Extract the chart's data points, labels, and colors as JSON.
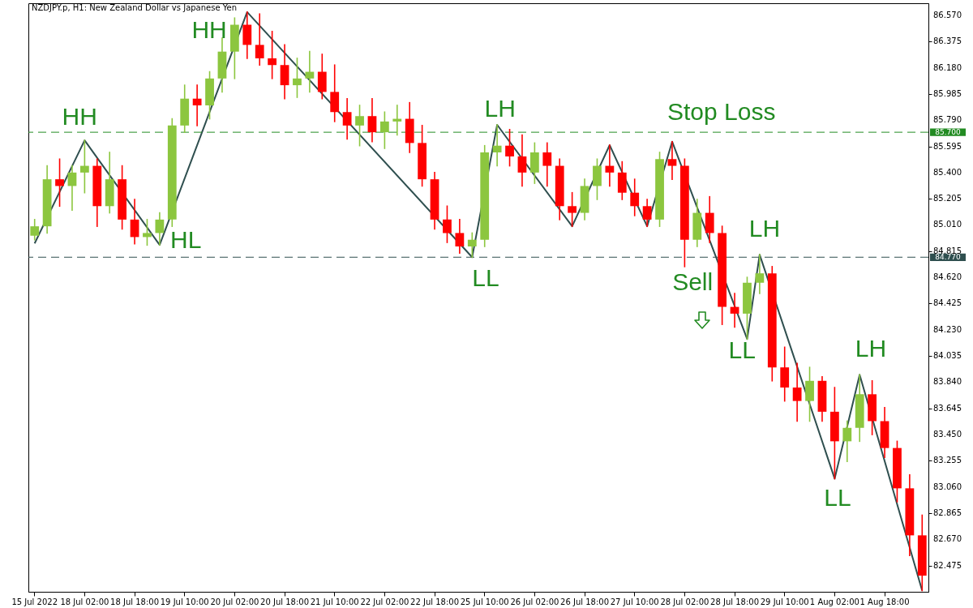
{
  "chart_data": {
    "type": "candlestick",
    "title": "NZDJPY.p, H1:  New Zealand Dollar vs Japanese Yen",
    "categories": [
      "15 Jul 2022",
      null,
      null,
      null,
      "18 Jul 02:00",
      null,
      null,
      null,
      "18 Jul 18:00",
      null,
      null,
      null,
      "19 Jul 10:00",
      null,
      null,
      null,
      "20 Jul 02:00",
      null,
      null,
      null,
      "20 Jul 18:00",
      null,
      null,
      null,
      "21 Jul 10:00",
      null,
      null,
      null,
      "22 Jul 02:00",
      null,
      null,
      null,
      "22 Jul 18:00",
      null,
      null,
      null,
      "25 Jul 10:00",
      null,
      null,
      null,
      "26 Jul 02:00",
      null,
      null,
      null,
      "26 Jul 18:00",
      null,
      null,
      null,
      "27 Jul 10:00",
      null,
      null,
      null,
      "28 Jul 02:00",
      null,
      null,
      null,
      "28 Jul 18:00",
      null,
      null,
      null,
      "29 Jul 10:00",
      null,
      null,
      null,
      "1 Aug 02:00",
      null,
      null,
      null,
      "1 Aug 18:00",
      null,
      null,
      null
    ],
    "ohlc": [
      [
        84.93,
        85.05,
        84.9,
        85.0
      ],
      [
        85.0,
        85.45,
        84.95,
        85.35
      ],
      [
        85.35,
        85.5,
        85.15,
        85.3
      ],
      [
        85.3,
        85.45,
        85.12,
        85.4
      ],
      [
        85.4,
        85.64,
        85.25,
        85.45
      ],
      [
        85.45,
        85.5,
        85.0,
        85.15
      ],
      [
        85.15,
        85.55,
        85.1,
        85.35
      ],
      [
        85.35,
        85.45,
        84.98,
        85.05
      ],
      [
        85.05,
        85.2,
        84.87,
        84.92
      ],
      [
        84.92,
        85.05,
        84.86,
        84.95
      ],
      [
        84.95,
        85.1,
        84.861,
        85.05
      ],
      [
        85.05,
        85.8,
        85.0,
        85.75
      ],
      [
        85.75,
        86.05,
        85.7,
        85.95
      ],
      [
        85.95,
        86.05,
        85.75,
        85.9
      ],
      [
        85.9,
        86.15,
        85.8,
        86.1
      ],
      [
        86.1,
        86.4,
        86.0,
        86.3
      ],
      [
        86.3,
        86.55,
        86.1,
        86.5
      ],
      [
        86.5,
        86.594,
        86.25,
        86.35
      ],
      [
        86.35,
        86.58,
        86.2,
        86.25
      ],
      [
        86.25,
        86.45,
        86.1,
        86.2
      ],
      [
        86.2,
        86.35,
        85.95,
        86.05
      ],
      [
        86.05,
        86.25,
        85.96,
        86.1
      ],
      [
        86.1,
        86.3,
        86.0,
        86.15
      ],
      [
        86.15,
        86.28,
        85.95,
        86.0
      ],
      [
        86.0,
        86.2,
        85.78,
        85.85
      ],
      [
        85.85,
        85.95,
        85.65,
        85.75
      ],
      [
        85.75,
        85.9,
        85.6,
        85.82
      ],
      [
        85.82,
        85.95,
        85.63,
        85.7
      ],
      [
        85.7,
        85.85,
        85.58,
        85.78
      ],
      [
        85.78,
        85.9,
        85.68,
        85.8
      ],
      [
        85.8,
        85.92,
        85.55,
        85.62
      ],
      [
        85.62,
        85.75,
        85.3,
        85.35
      ],
      [
        85.35,
        85.4,
        84.98,
        85.05
      ],
      [
        85.05,
        85.15,
        84.88,
        84.95
      ],
      [
        84.95,
        85.05,
        84.8,
        84.85
      ],
      [
        84.85,
        84.95,
        84.77,
        84.9
      ],
      [
        84.9,
        85.6,
        84.85,
        85.55
      ],
      [
        85.55,
        85.755,
        85.45,
        85.6
      ],
      [
        85.6,
        85.72,
        85.45,
        85.52
      ],
      [
        85.52,
        85.68,
        85.3,
        85.4
      ],
      [
        85.4,
        85.62,
        85.32,
        85.55
      ],
      [
        85.55,
        85.62,
        85.3,
        85.45
      ],
      [
        85.45,
        85.5,
        85.05,
        85.15
      ],
      [
        85.15,
        85.25,
        85.0,
        85.1
      ],
      [
        85.1,
        85.35,
        85.05,
        85.3
      ],
      [
        85.3,
        85.5,
        85.2,
        85.45
      ],
      [
        85.45,
        85.604,
        85.3,
        85.4
      ],
      [
        85.4,
        85.48,
        85.2,
        85.25
      ],
      [
        85.25,
        85.35,
        85.08,
        85.15
      ],
      [
        85.15,
        85.2,
        85.0,
        85.05
      ],
      [
        85.05,
        85.55,
        85.0,
        85.5
      ],
      [
        85.5,
        85.63,
        85.35,
        85.45
      ],
      [
        85.45,
        85.5,
        84.7,
        84.9
      ],
      [
        84.9,
        85.2,
        84.85,
        85.1
      ],
      [
        85.1,
        85.22,
        84.88,
        84.95
      ],
      [
        84.95,
        85.0,
        84.27,
        84.4
      ],
      [
        84.4,
        84.5,
        84.25,
        84.35
      ],
      [
        84.35,
        84.62,
        84.161,
        84.58
      ],
      [
        84.58,
        84.789,
        84.5,
        84.65
      ],
      [
        84.65,
        84.7,
        83.85,
        83.95
      ],
      [
        83.95,
        84.1,
        83.7,
        83.8
      ],
      [
        83.8,
        83.98,
        83.55,
        83.7
      ],
      [
        83.7,
        83.95,
        83.55,
        83.85
      ],
      [
        83.85,
        83.88,
        83.55,
        83.62
      ],
      [
        83.62,
        83.8,
        83.122,
        83.4
      ],
      [
        83.4,
        83.55,
        83.25,
        83.5
      ],
      [
        83.5,
        83.895,
        83.4,
        83.75
      ],
      [
        83.75,
        83.85,
        83.45,
        83.55
      ],
      [
        83.55,
        83.65,
        83.28,
        83.35
      ],
      [
        83.35,
        83.4,
        82.95,
        83.05
      ],
      [
        83.05,
        83.15,
        82.55,
        82.7
      ],
      [
        82.7,
        82.85,
        82.289,
        82.4
      ]
    ],
    "colors": [
      "#8cc63f",
      "#8cc63f",
      "#ff0000",
      "#8cc63f",
      "#8cc63f",
      "#ff0000",
      "#8cc63f",
      "#ff0000",
      "#ff0000",
      "#8cc63f",
      "#8cc63f",
      "#8cc63f",
      "#8cc63f",
      "#ff0000",
      "#8cc63f",
      "#8cc63f",
      "#8cc63f",
      "#ff0000",
      "#ff0000",
      "#ff0000",
      "#ff0000",
      "#8cc63f",
      "#8cc63f",
      "#ff0000",
      "#ff0000",
      "#ff0000",
      "#8cc63f",
      "#ff0000",
      "#8cc63f",
      "#8cc63f",
      "#ff0000",
      "#ff0000",
      "#ff0000",
      "#ff0000",
      "#ff0000",
      "#8cc63f",
      "#8cc63f",
      "#8cc63f",
      "#ff0000",
      "#ff0000",
      "#8cc63f",
      "#ff0000",
      "#ff0000",
      "#ff0000",
      "#8cc63f",
      "#8cc63f",
      "#ff0000",
      "#ff0000",
      "#ff0000",
      "#ff0000",
      "#8cc63f",
      "#ff0000",
      "#ff0000",
      "#8cc63f",
      "#ff0000",
      "#ff0000",
      "#ff0000",
      "#8cc63f",
      "#8cc63f",
      "#ff0000",
      "#ff0000",
      "#ff0000",
      "#8cc63f",
      "#ff0000",
      "#ff0000",
      "#8cc63f",
      "#8cc63f",
      "#ff0000",
      "#ff0000",
      "#ff0000",
      "#ff0000",
      "#ff0000"
    ],
    "series": [
      {
        "type": "line",
        "color": "#2f4f4f",
        "values": [
          84.873,
          null,
          null,
          null,
          85.64,
          null,
          null,
          null,
          null,
          null,
          84.861,
          null,
          null,
          null,
          null,
          null,
          null,
          86.594,
          null,
          null,
          null,
          null,
          null,
          null,
          null,
          null,
          null,
          null,
          null,
          null,
          null,
          null,
          null,
          null,
          null,
          84.77,
          null,
          85.755,
          null,
          null,
          null,
          null,
          null,
          85.0,
          null,
          null,
          85.604,
          null,
          null,
          85.0,
          null,
          85.63,
          null,
          null,
          null,
          null,
          null,
          84.161,
          84.789,
          null,
          null,
          null,
          null,
          null,
          83.122,
          null,
          83.895,
          null,
          null,
          null,
          null,
          82.289
        ]
      }
    ],
    "ylim": [
      82.28,
      86.66
    ],
    "yticks": [
      {
        "value": 86.57,
        "label": "86.570"
      },
      {
        "value": 86.375,
        "label": "86.375"
      },
      {
        "value": 86.18,
        "label": "86.180"
      },
      {
        "value": 85.985,
        "label": "85.985"
      },
      {
        "value": 85.79,
        "label": "85.790"
      },
      {
        "value": 85.595,
        "label": "85.595"
      },
      {
        "value": 85.4,
        "label": "85.400"
      },
      {
        "value": 85.205,
        "label": "85.205"
      },
      {
        "value": 85.01,
        "label": "85.010"
      },
      {
        "value": 84.815,
        "label": "84.815"
      },
      {
        "value": 84.62,
        "label": "84.620"
      },
      {
        "value": 84.425,
        "label": "84.425"
      },
      {
        "value": 84.23,
        "label": "84.230"
      },
      {
        "value": 84.035,
        "label": "84.035"
      },
      {
        "value": 83.84,
        "label": "83.840"
      },
      {
        "value": 83.645,
        "label": "83.645"
      },
      {
        "value": 83.45,
        "label": "83.450"
      },
      {
        "value": 83.255,
        "label": "83.255"
      },
      {
        "value": 83.06,
        "label": "83.060"
      },
      {
        "value": 82.865,
        "label": "82.865"
      },
      {
        "value": 82.67,
        "label": "82.670"
      },
      {
        "value": 82.475,
        "label": "82.475"
      }
    ],
    "ref_lines": [
      {
        "axis": "y",
        "value": 85.7,
        "label": "85.700",
        "color": "#228b22",
        "line_style": "dashed"
      },
      {
        "axis": "y",
        "value": 84.77,
        "label": "84.770",
        "color": "#2f4f4f",
        "line_style": "dashed"
      }
    ],
    "annotations": [
      "HH",
      "HL",
      "HH",
      "LL",
      "LH",
      "Stop Loss",
      "LH",
      "Sell",
      "LL",
      "LL",
      "LH"
    ]
  }
}
